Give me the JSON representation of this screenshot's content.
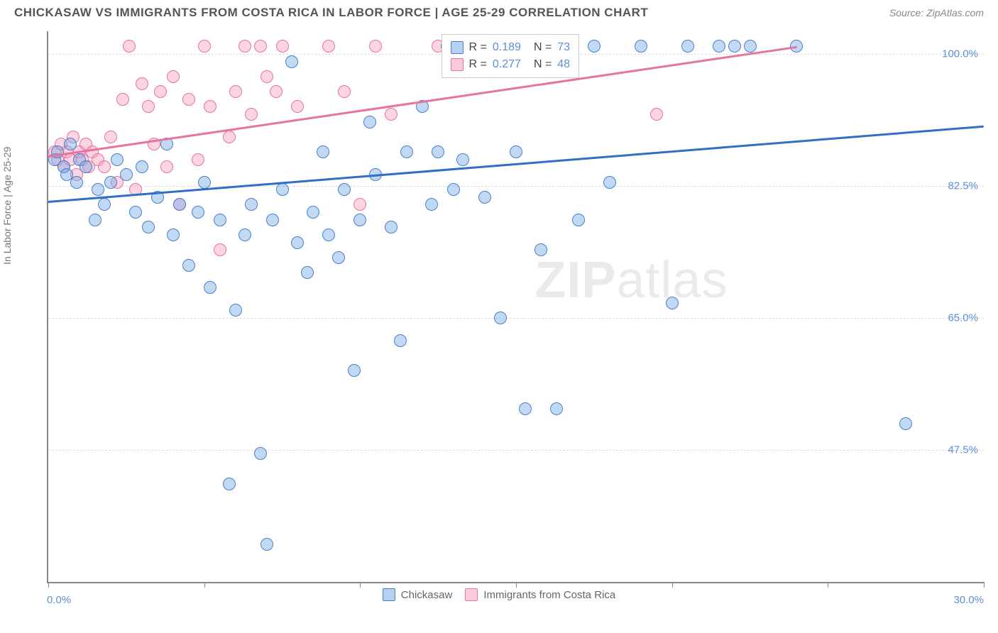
{
  "title": "CHICKASAW VS IMMIGRANTS FROM COSTA RICA IN LABOR FORCE | AGE 25-29 CORRELATION CHART",
  "source": "Source: ZipAtlas.com",
  "ylabel": "In Labor Force | Age 25-29",
  "watermark_a": "ZIP",
  "watermark_b": "atlas",
  "plot": {
    "xlim": [
      0,
      30
    ],
    "ylim": [
      30,
      103
    ],
    "xtick_positions": [
      0,
      5,
      10,
      15,
      20,
      25,
      30
    ],
    "xtick_labels": {
      "0": "0.0%",
      "30": "30.0%"
    },
    "ytick_positions": [
      47.5,
      65.0,
      82.5,
      100.0
    ],
    "ytick_labels": [
      "47.5%",
      "65.0%",
      "82.5%",
      "100.0%"
    ],
    "grid_color": "#dddddd",
    "axis_color": "#888888",
    "background": "#ffffff"
  },
  "series": {
    "blue": {
      "label": "Chickasaw",
      "color_fill": "rgba(120,170,230,0.45)",
      "color_stroke": "#4a7fc9",
      "R": "0.189",
      "N": "73",
      "trend": {
        "x1": 0,
        "y1": 80.5,
        "x2": 30,
        "y2": 90.5,
        "color": "#2f6fc4"
      },
      "points": [
        [
          0.2,
          86
        ],
        [
          0.3,
          87
        ],
        [
          0.5,
          85
        ],
        [
          0.6,
          84
        ],
        [
          0.7,
          88
        ],
        [
          0.9,
          83
        ],
        [
          1.0,
          86
        ],
        [
          1.2,
          85
        ],
        [
          1.5,
          78
        ],
        [
          1.6,
          82
        ],
        [
          1.8,
          80
        ],
        [
          2.0,
          83
        ],
        [
          2.2,
          86
        ],
        [
          2.5,
          84
        ],
        [
          2.8,
          79
        ],
        [
          3.0,
          85
        ],
        [
          3.2,
          77
        ],
        [
          3.5,
          81
        ],
        [
          3.8,
          88
        ],
        [
          4.0,
          76
        ],
        [
          4.2,
          80
        ],
        [
          4.5,
          72
        ],
        [
          4.8,
          79
        ],
        [
          5.0,
          83
        ],
        [
          5.2,
          69
        ],
        [
          5.5,
          78
        ],
        [
          5.8,
          43
        ],
        [
          6.0,
          66
        ],
        [
          6.3,
          76
        ],
        [
          6.5,
          80
        ],
        [
          6.8,
          47
        ],
        [
          7.0,
          35
        ],
        [
          7.2,
          78
        ],
        [
          7.5,
          82
        ],
        [
          7.8,
          99
        ],
        [
          8.0,
          75
        ],
        [
          8.3,
          71
        ],
        [
          8.5,
          79
        ],
        [
          8.8,
          87
        ],
        [
          9.0,
          76
        ],
        [
          9.3,
          73
        ],
        [
          9.5,
          82
        ],
        [
          9.8,
          58
        ],
        [
          10.0,
          78
        ],
        [
          10.3,
          91
        ],
        [
          10.5,
          84
        ],
        [
          11.0,
          77
        ],
        [
          11.3,
          62
        ],
        [
          11.5,
          87
        ],
        [
          12.0,
          93
        ],
        [
          12.3,
          80
        ],
        [
          12.5,
          87
        ],
        [
          12.8,
          101
        ],
        [
          13.0,
          82
        ],
        [
          13.3,
          86
        ],
        [
          14.0,
          81
        ],
        [
          14.5,
          65
        ],
        [
          15.0,
          87
        ],
        [
          15.3,
          53
        ],
        [
          15.8,
          74
        ],
        [
          16.0,
          101
        ],
        [
          16.3,
          53
        ],
        [
          17.0,
          78
        ],
        [
          17.5,
          101
        ],
        [
          18.0,
          83
        ],
        [
          19.0,
          101
        ],
        [
          20.0,
          67
        ],
        [
          20.5,
          101
        ],
        [
          21.5,
          101
        ],
        [
          22.0,
          101
        ],
        [
          22.5,
          101
        ],
        [
          24.0,
          101
        ],
        [
          27.5,
          51
        ]
      ]
    },
    "pink": {
      "label": "Immigrants from Costa Rica",
      "color_fill": "rgba(250,160,190,0.45)",
      "color_stroke": "#e6749e",
      "R": "0.277",
      "N": "48",
      "trend": {
        "x1": 0,
        "y1": 86.5,
        "x2": 24,
        "y2": 101,
        "color": "#e6749e"
      },
      "points": [
        [
          0.2,
          87
        ],
        [
          0.3,
          86
        ],
        [
          0.4,
          88
        ],
        [
          0.5,
          85
        ],
        [
          0.6,
          87
        ],
        [
          0.7,
          86
        ],
        [
          0.8,
          89
        ],
        [
          0.9,
          84
        ],
        [
          1.0,
          87
        ],
        [
          1.1,
          86
        ],
        [
          1.2,
          88
        ],
        [
          1.3,
          85
        ],
        [
          1.4,
          87
        ],
        [
          1.6,
          86
        ],
        [
          1.8,
          85
        ],
        [
          2.0,
          89
        ],
        [
          2.2,
          83
        ],
        [
          2.4,
          94
        ],
        [
          2.6,
          101
        ],
        [
          2.8,
          82
        ],
        [
          3.0,
          96
        ],
        [
          3.2,
          93
        ],
        [
          3.4,
          88
        ],
        [
          3.6,
          95
        ],
        [
          3.8,
          85
        ],
        [
          4.0,
          97
        ],
        [
          4.2,
          80
        ],
        [
          4.5,
          94
        ],
        [
          4.8,
          86
        ],
        [
          5.0,
          101
        ],
        [
          5.2,
          93
        ],
        [
          5.5,
          74
        ],
        [
          5.8,
          89
        ],
        [
          6.0,
          95
        ],
        [
          6.3,
          101
        ],
        [
          6.5,
          92
        ],
        [
          6.8,
          101
        ],
        [
          7.0,
          97
        ],
        [
          7.3,
          95
        ],
        [
          7.5,
          101
        ],
        [
          8.0,
          93
        ],
        [
          9.0,
          101
        ],
        [
          9.5,
          95
        ],
        [
          10.0,
          80
        ],
        [
          10.5,
          101
        ],
        [
          11.0,
          92
        ],
        [
          12.5,
          101
        ],
        [
          19.5,
          92
        ]
      ]
    }
  },
  "legend_box": {
    "R_label": "R =",
    "N_label": "N ="
  }
}
